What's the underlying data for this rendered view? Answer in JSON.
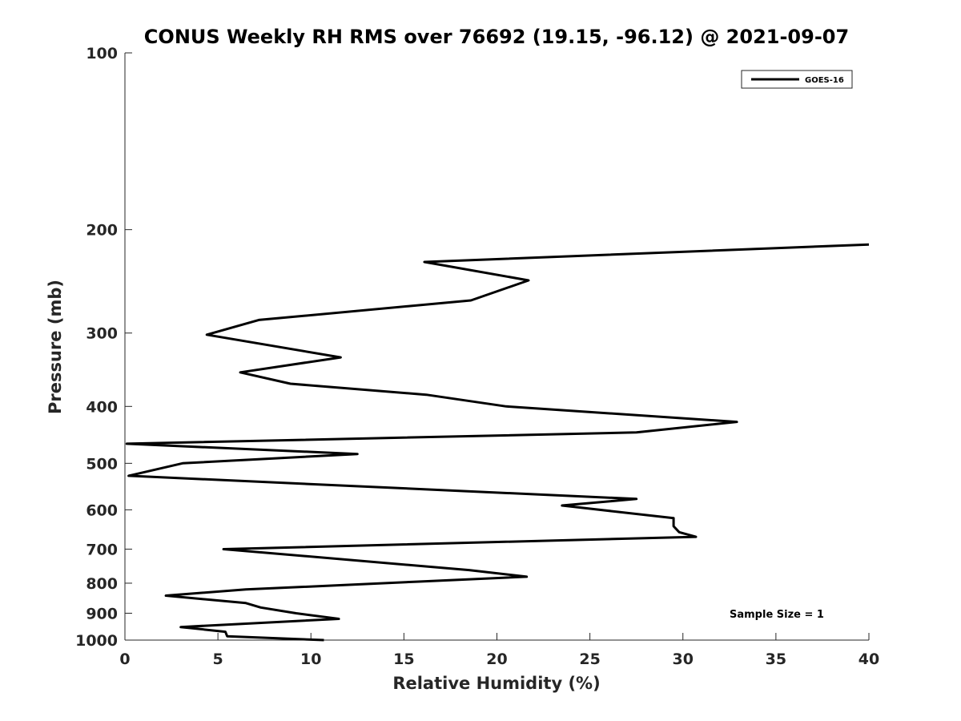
{
  "chart_data": {
    "type": "line",
    "title": "CONUS Weekly RH RMS over 76692 (19.15, -96.12) @ 2021-09-07",
    "xlabel": "Relative Humidity (%)",
    "ylabel": "Pressure (mb)",
    "xlim": [
      0,
      40
    ],
    "ylim": [
      100,
      1000
    ],
    "y_scale": "log",
    "y_reversed": true,
    "x_ticks": [
      0,
      5,
      10,
      15,
      20,
      25,
      30,
      35,
      40
    ],
    "y_ticks": [
      100,
      200,
      300,
      400,
      500,
      600,
      700,
      800,
      900,
      1000
    ],
    "grid": false,
    "legend_position": "top-right",
    "series": [
      {
        "name": "GOES-16",
        "color": "#000000",
        "points": [
          [
            10.7,
            1000
          ],
          [
            5.5,
            985
          ],
          [
            5.4,
            968
          ],
          [
            3.0,
            950
          ],
          [
            11.5,
            920
          ],
          [
            9.2,
            900
          ],
          [
            7.3,
            880
          ],
          [
            6.5,
            865
          ],
          [
            2.2,
            840
          ],
          [
            6.5,
            820
          ],
          [
            15.8,
            795
          ],
          [
            21.6,
            780
          ],
          [
            18.5,
            760
          ],
          [
            5.3,
            700
          ],
          [
            30.7,
            667
          ],
          [
            29.8,
            655
          ],
          [
            29.5,
            640
          ],
          [
            29.5,
            620
          ],
          [
            23.5,
            590
          ],
          [
            27.5,
            575
          ],
          [
            0.2,
            525
          ],
          [
            3.1,
            500
          ],
          [
            12.5,
            482
          ],
          [
            0.1,
            463
          ],
          [
            27.5,
            443
          ],
          [
            32.9,
            425
          ],
          [
            20.5,
            400
          ],
          [
            16.2,
            382
          ],
          [
            8.9,
            366
          ],
          [
            6.2,
            350
          ],
          [
            11.6,
            330
          ],
          [
            4.4,
            302
          ],
          [
            7.2,
            285
          ],
          [
            18.6,
            264
          ],
          [
            21.7,
            244
          ],
          [
            16.1,
            227
          ],
          [
            40.0,
            212
          ]
        ]
      }
    ],
    "annotation": "Sample Size = 1"
  }
}
